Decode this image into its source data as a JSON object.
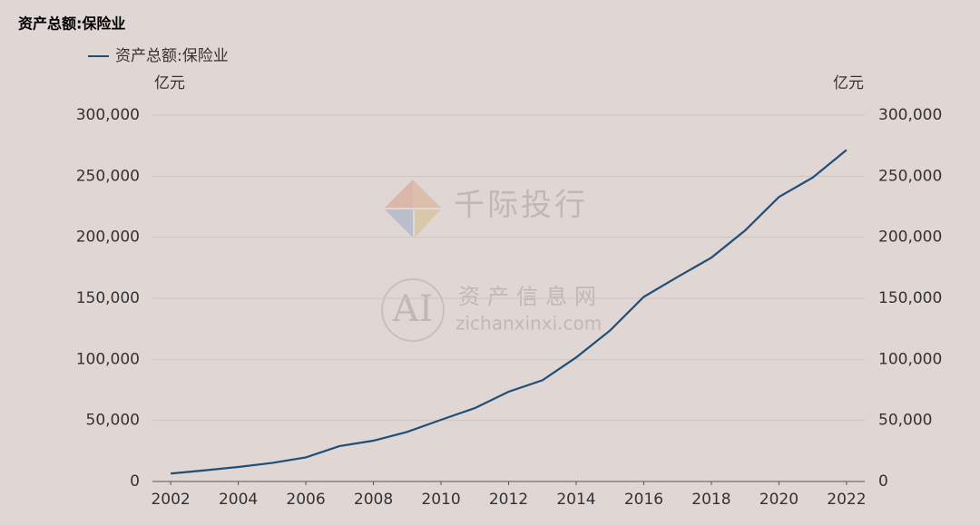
{
  "chart_data": {
    "type": "line",
    "title": "资产总额:保险业",
    "y_unit": "亿元",
    "y2_unit": "亿元",
    "x": [
      2002,
      2003,
      2004,
      2005,
      2006,
      2007,
      2008,
      2009,
      2010,
      2011,
      2012,
      2013,
      2014,
      2015,
      2016,
      2017,
      2018,
      2019,
      2020,
      2021,
      2022
    ],
    "series": [
      {
        "name": "资产总额:保险业",
        "color": "#1f4e79",
        "values": [
          6500,
          9100,
          11900,
          15200,
          19700,
          29000,
          33400,
          40600,
          50500,
          60100,
          73500,
          82900,
          101600,
          123600,
          151200,
          167500,
          183300,
          205600,
          233000,
          248900,
          271500
        ]
      }
    ],
    "xlim": [
      2001.46,
      2022.54
    ],
    "xticks": [
      2002,
      2004,
      2006,
      2008,
      2010,
      2012,
      2014,
      2016,
      2018,
      2020,
      2022
    ],
    "ylim": [
      0,
      300000
    ],
    "yticks": [
      0,
      {
        "value": 50000,
        "label": "50,000"
      },
      {
        "value": 100000,
        "label": "100,000"
      },
      {
        "value": 150000,
        "label": "150,000"
      },
      {
        "value": 200000,
        "label": "200,000"
      },
      {
        "value": 250000,
        "label": "250,000"
      },
      {
        "value": 300000,
        "label": "300,000"
      }
    ],
    "y2lim": [
      0,
      300000
    ],
    "y2ticks": [
      0,
      {
        "value": 50000,
        "label": "50,000"
      },
      {
        "value": 100000,
        "label": "100,000"
      },
      {
        "value": 150000,
        "label": "150,000"
      },
      {
        "value": 200000,
        "label": "200,000"
      },
      {
        "value": 250000,
        "label": "250,000"
      },
      {
        "value": 300000,
        "label": "300,000"
      }
    ],
    "grid": true,
    "legend": "top-left"
  },
  "watermark": {
    "brand": "千际投行",
    "logo": "AI",
    "site_cn": "资产信息网",
    "site_url": "zichanxinxi.com"
  }
}
